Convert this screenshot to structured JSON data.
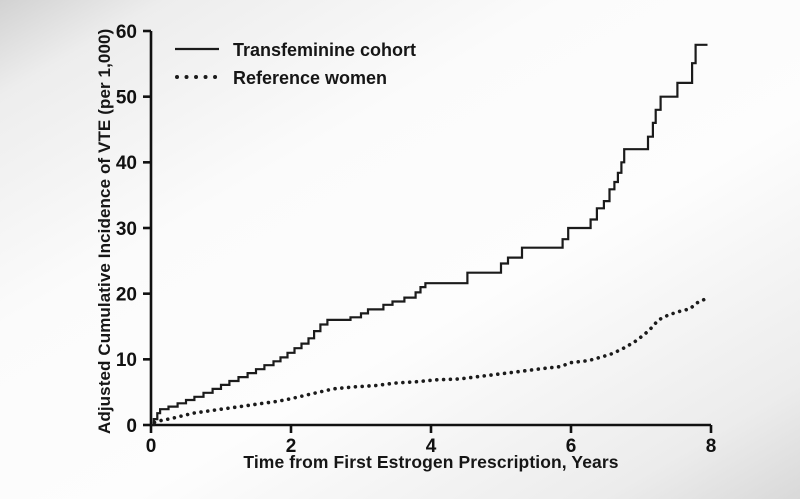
{
  "chart_data": {
    "type": "line",
    "title": "",
    "xlabel": "Time from First Estrogen Prescription, Years",
    "ylabel": "Adjusted Cumulative Incidence of VTE (per 1,000)",
    "xlim": [
      0,
      8
    ],
    "ylim": [
      0,
      60
    ],
    "x_ticks": [
      0,
      2,
      4,
      6,
      8
    ],
    "y_ticks": [
      0,
      10,
      20,
      30,
      40,
      50,
      60
    ],
    "grid": false,
    "legend_position": "top-left-inside",
    "line_color": "#1b1b1b",
    "axis_color": "#111111",
    "series": [
      {
        "name": "Transfeminine cohort",
        "style": "solid-step",
        "points": [
          [
            0,
            0
          ],
          [
            0.04,
            0.9
          ],
          [
            0.09,
            1.8
          ],
          [
            0.13,
            2.4
          ],
          [
            0.25,
            2.8
          ],
          [
            0.38,
            3.3
          ],
          [
            0.5,
            3.8
          ],
          [
            0.62,
            4.3
          ],
          [
            0.75,
            4.9
          ],
          [
            0.88,
            5.5
          ],
          [
            1.0,
            6.1
          ],
          [
            1.12,
            6.7
          ],
          [
            1.25,
            7.3
          ],
          [
            1.38,
            7.9
          ],
          [
            1.5,
            8.5
          ],
          [
            1.62,
            9.1
          ],
          [
            1.75,
            9.7
          ],
          [
            1.85,
            10.3
          ],
          [
            1.95,
            11.0
          ],
          [
            2.05,
            11.7
          ],
          [
            2.15,
            12.4
          ],
          [
            2.25,
            13.2
          ],
          [
            2.33,
            14.3
          ],
          [
            2.42,
            15.3
          ],
          [
            2.52,
            16.0
          ],
          [
            2.85,
            16.4
          ],
          [
            3.0,
            17.0
          ],
          [
            3.1,
            17.6
          ],
          [
            3.32,
            18.3
          ],
          [
            3.45,
            18.8
          ],
          [
            3.62,
            19.4
          ],
          [
            3.78,
            20.2
          ],
          [
            3.85,
            21.0
          ],
          [
            3.92,
            21.6
          ],
          [
            4.52,
            23.2
          ],
          [
            5.0,
            24.6
          ],
          [
            5.1,
            25.5
          ],
          [
            5.3,
            27.0
          ],
          [
            5.88,
            28.3
          ],
          [
            5.96,
            30.0
          ],
          [
            6.28,
            31.3
          ],
          [
            6.37,
            33.0
          ],
          [
            6.47,
            34.1
          ],
          [
            6.55,
            35.9
          ],
          [
            6.62,
            37.0
          ],
          [
            6.67,
            38.4
          ],
          [
            6.72,
            40.0
          ],
          [
            6.76,
            42.0
          ],
          [
            7.1,
            43.9
          ],
          [
            7.17,
            46.0
          ],
          [
            7.21,
            48.0
          ],
          [
            7.28,
            50.0
          ],
          [
            7.52,
            52.1
          ],
          [
            7.73,
            55.1
          ],
          [
            7.78,
            57.9
          ],
          [
            7.95,
            57.9
          ]
        ]
      },
      {
        "name": "Reference women",
        "style": "dotted",
        "points": [
          [
            0.05,
            0.4
          ],
          [
            0.15,
            0.7
          ],
          [
            0.3,
            1.0
          ],
          [
            0.45,
            1.4
          ],
          [
            0.6,
            1.8
          ],
          [
            0.8,
            2.1
          ],
          [
            1.0,
            2.4
          ],
          [
            1.2,
            2.7
          ],
          [
            1.4,
            3.0
          ],
          [
            1.6,
            3.3
          ],
          [
            1.8,
            3.6
          ],
          [
            2.0,
            4.0
          ],
          [
            2.2,
            4.5
          ],
          [
            2.4,
            5.0
          ],
          [
            2.6,
            5.5
          ],
          [
            2.9,
            5.8
          ],
          [
            3.2,
            6.0
          ],
          [
            3.5,
            6.4
          ],
          [
            3.8,
            6.6
          ],
          [
            4.1,
            6.9
          ],
          [
            4.4,
            7.0
          ],
          [
            4.7,
            7.4
          ],
          [
            5.0,
            7.8
          ],
          [
            5.3,
            8.2
          ],
          [
            5.6,
            8.6
          ],
          [
            5.85,
            8.9
          ],
          [
            6.0,
            9.5
          ],
          [
            6.25,
            9.8
          ],
          [
            6.45,
            10.4
          ],
          [
            6.6,
            10.9
          ],
          [
            6.75,
            11.7
          ],
          [
            6.9,
            12.6
          ],
          [
            7.05,
            13.8
          ],
          [
            7.15,
            14.8
          ],
          [
            7.25,
            16.0
          ],
          [
            7.4,
            16.8
          ],
          [
            7.55,
            17.3
          ],
          [
            7.7,
            17.7
          ],
          [
            7.8,
            18.6
          ],
          [
            7.9,
            19.1
          ]
        ]
      }
    ]
  }
}
